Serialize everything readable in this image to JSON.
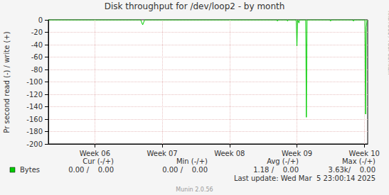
{
  "chart_data": {
    "type": "line",
    "title": "Disk throughput for /dev/loop2 - by month",
    "y_label": "Pr second read (-) / write (+)",
    "x": [
      5.31,
      6.68,
      6.71,
      6.74,
      8.7,
      8.71,
      8.72,
      8.85,
      8.86,
      8.87,
      8.99,
      9.0,
      9.01,
      9.03,
      9.04,
      9.13,
      9.14,
      9.15,
      9.49,
      9.5,
      9.51,
      9.83,
      9.84,
      9.85,
      10.01,
      10.02,
      10.03,
      10.04
    ],
    "series": [
      {
        "name": "Bytes",
        "color": "#00cc00",
        "values": [
          0,
          0,
          -8,
          0,
          0,
          -2,
          0,
          0,
          -2,
          0,
          0,
          -42,
          0,
          -5,
          0,
          0,
          -157,
          0,
          0,
          -2,
          0,
          0,
          -2,
          0,
          0,
          -152,
          -12,
          0
        ]
      }
    ],
    "xlim": [
      5.31,
      10.05
    ],
    "xticks": [
      {
        "value": 6,
        "label": "Week 06"
      },
      {
        "value": 7,
        "label": "Week 07"
      },
      {
        "value": 8,
        "label": "Week 08"
      },
      {
        "value": 9,
        "label": "Week 09"
      },
      {
        "value": 10,
        "label": "Week 10"
      }
    ],
    "ylim": [
      -200,
      0
    ],
    "yticks": [
      -200,
      -180,
      -160,
      -140,
      -120,
      -100,
      -80,
      -60,
      -40,
      -20,
      0
    ],
    "grid": true,
    "summary": {
      "headers": [
        "Cur (-/+)",
        "Min (-/+)",
        "Avg (-/+)",
        "Max (-/+)"
      ],
      "rows": [
        {
          "name": "Bytes",
          "values": [
            "0.00 /    0.00",
            "0.00 /    0.00",
            "1.18 /    0.00",
            "3.63k/    0.00"
          ]
        }
      ]
    },
    "footer": "Last update: Wed Mar  5 23:00:14 2025",
    "credits": [
      "Munin 2.0.56",
      "RRDTOOL / TOBI OETIKER"
    ]
  }
}
